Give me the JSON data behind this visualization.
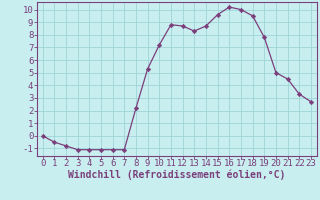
{
  "x": [
    0,
    1,
    2,
    3,
    4,
    5,
    6,
    7,
    8,
    9,
    10,
    11,
    12,
    13,
    14,
    15,
    16,
    17,
    18,
    19,
    20,
    21,
    22,
    23
  ],
  "y": [
    0.0,
    -0.5,
    -0.8,
    -1.1,
    -1.1,
    -1.1,
    -1.1,
    -1.1,
    2.2,
    5.3,
    7.2,
    8.8,
    8.7,
    8.3,
    8.7,
    9.6,
    10.2,
    10.0,
    9.5,
    7.8,
    5.0,
    4.5,
    3.3,
    2.7
  ],
  "line_color": "#7b3f7b",
  "marker": "D",
  "marker_size": 2.2,
  "bg_color": "#c8eef0",
  "grid_color": "#9fd4d8",
  "xlabel": "Windchill (Refroidissement éolien,°C)",
  "xlim": [
    -0.5,
    23.5
  ],
  "ylim": [
    -1.6,
    10.6
  ],
  "yticks": [
    -1,
    0,
    1,
    2,
    3,
    4,
    5,
    6,
    7,
    8,
    9,
    10
  ],
  "xticks": [
    0,
    1,
    2,
    3,
    4,
    5,
    6,
    7,
    8,
    9,
    10,
    11,
    12,
    13,
    14,
    15,
    16,
    17,
    18,
    19,
    20,
    21,
    22,
    23
  ],
  "tick_color": "#7b3f7b",
  "label_color": "#7b3f7b",
  "axis_color": "#7b3f7b",
  "tick_fontsize": 6.5,
  "xlabel_fontsize": 7.0
}
